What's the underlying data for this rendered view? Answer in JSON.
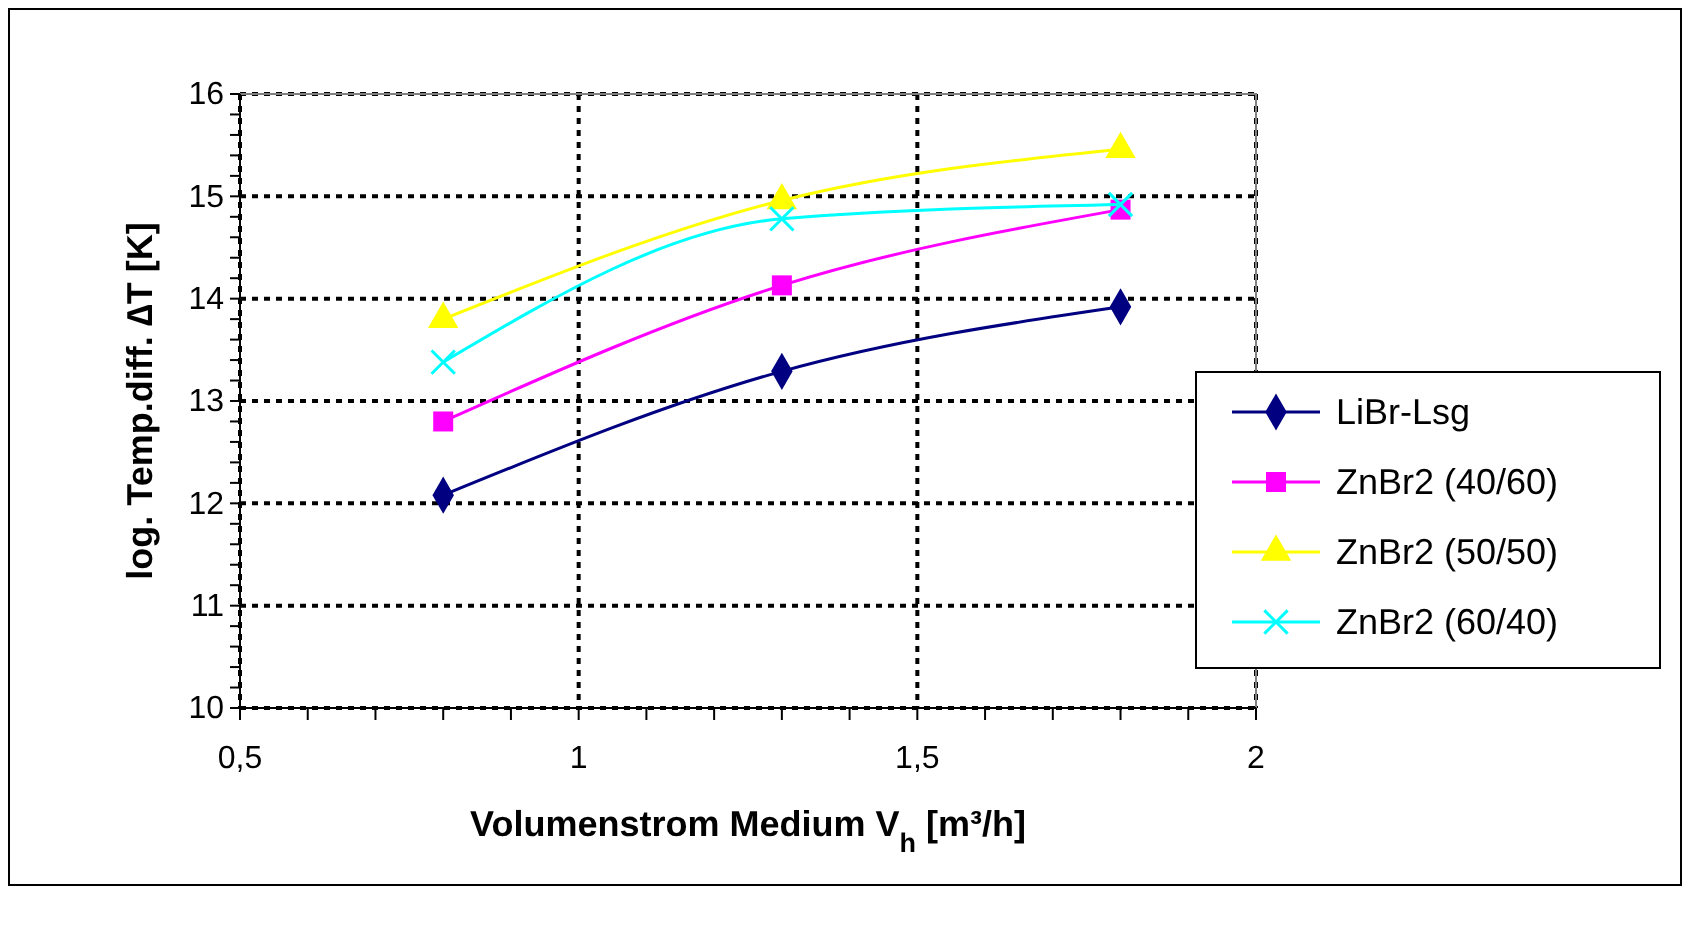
{
  "chart_data": {
    "type": "line",
    "xlabel": "Volumenstrom Medium V$_{h}$ [m³/h]",
    "ylabel": "log. Temp.diff. ∆T [K]",
    "x": [
      0.8,
      1.3,
      1.8
    ],
    "series": [
      {
        "name": "LiBr-Lsg",
        "color": "#000080",
        "marker": "diamond",
        "values": [
          12.08,
          13.29,
          13.92
        ]
      },
      {
        "name": "ZnBr2 (40/60)",
        "color": "#ff00ff",
        "marker": "square",
        "values": [
          12.8,
          14.13,
          14.87
        ]
      },
      {
        "name": "ZnBr2 (50/50)",
        "color": "#ffff00",
        "marker": "triangle",
        "values": [
          13.8,
          14.96,
          15.46
        ]
      },
      {
        "name": "ZnBr2 (60/40)",
        "color": "#00ffff",
        "marker": "cross",
        "values": [
          13.38,
          14.78,
          14.92
        ]
      }
    ],
    "xlim": [
      0.5,
      2
    ],
    "xticks": [
      {
        "value": 0.5,
        "label": "0,5"
      },
      {
        "value": 0.6,
        "label": null
      },
      {
        "value": 0.7,
        "label": null
      },
      {
        "value": 0.8,
        "label": null
      },
      {
        "value": 0.9,
        "label": null
      },
      1,
      {
        "value": 1.1,
        "label": null
      },
      {
        "value": 1.2,
        "label": null
      },
      {
        "value": 1.3,
        "label": null
      },
      {
        "value": 1.4,
        "label": null
      },
      {
        "value": 1.5,
        "label": "1,5"
      },
      {
        "value": 1.6,
        "label": null
      },
      {
        "value": 1.7,
        "label": null
      },
      {
        "value": 1.8,
        "label": null
      },
      {
        "value": 1.9,
        "label": null
      },
      2
    ],
    "ylim": [
      10,
      16
    ],
    "yticks": [
      10,
      {
        "value": 10.2,
        "label": null
      },
      {
        "value": 10.4,
        "label": null
      },
      {
        "value": 10.6,
        "label": null
      },
      {
        "value": 10.8,
        "label": null
      },
      11,
      {
        "value": 11.2,
        "label": null
      },
      {
        "value": 11.4,
        "label": null
      },
      {
        "value": 11.6,
        "label": null
      },
      {
        "value": 11.8,
        "label": null
      },
      12,
      {
        "value": 12.2,
        "label": null
      },
      {
        "value": 12.4,
        "label": null
      },
      {
        "value": 12.6,
        "label": null
      },
      {
        "value": 12.8,
        "label": null
      },
      13,
      {
        "value": 13.2,
        "label": null
      },
      {
        "value": 13.4,
        "label": null
      },
      {
        "value": 13.6,
        "label": null
      },
      {
        "value": 13.8,
        "label": null
      },
      14,
      {
        "value": 14.2,
        "label": null
      },
      {
        "value": 14.4,
        "label": null
      },
      {
        "value": 14.6,
        "label": null
      },
      {
        "value": 14.8,
        "label": null
      },
      15,
      {
        "value": 15.2,
        "label": null
      },
      {
        "value": 15.4,
        "label": null
      },
      {
        "value": 15.6,
        "label": null
      },
      {
        "value": 15.8,
        "label": null
      },
      16
    ],
    "grid": true,
    "legend": "right",
    "line_style": "solid"
  }
}
